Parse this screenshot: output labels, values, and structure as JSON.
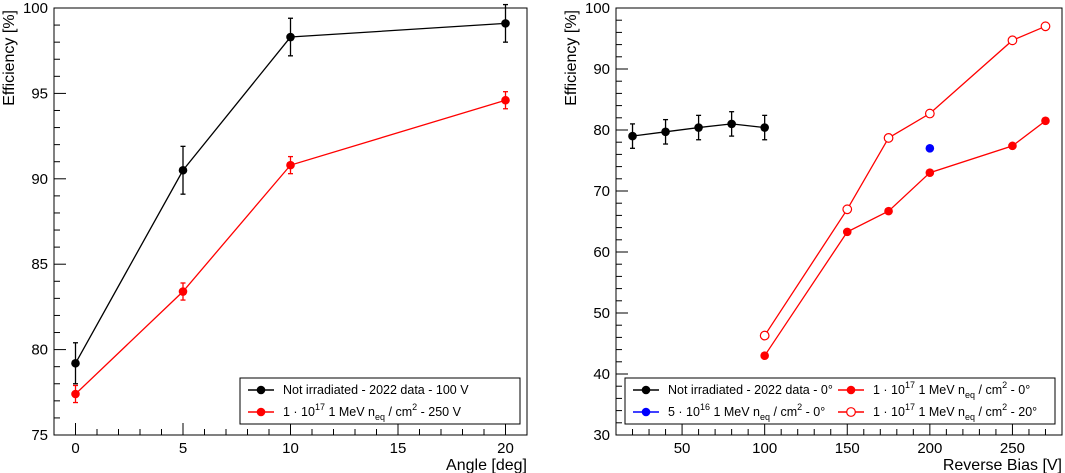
{
  "chart_data": [
    {
      "type": "line",
      "title": "",
      "xlabel": "Angle [deg]",
      "ylabel": "Efficiency [%]",
      "xlim": [
        -1,
        21
      ],
      "ylim": [
        75,
        100
      ],
      "xticks": [
        0,
        5,
        10,
        15,
        20
      ],
      "yticks": [
        75,
        80,
        85,
        90,
        95,
        100
      ],
      "xtick_labels": [
        "0",
        "5",
        "10",
        "15",
        "20"
      ],
      "ytick_labels": [
        "75",
        "80",
        "85",
        "90",
        "95",
        "100"
      ],
      "legend_position": "bottom-right",
      "series": [
        {
          "name": "Not irradiated - 2022 data - 100 V",
          "legend_main": "Not irradiated - 2022 data - 100 V",
          "color": "#000000",
          "marker": "filled-circle",
          "x": [
            0,
            5,
            10,
            20
          ],
          "values": [
            79.2,
            90.5,
            98.3,
            99.1
          ],
          "errors": [
            1.2,
            1.4,
            1.1,
            1.1
          ]
        },
        {
          "name": "1 · 10^17 1 MeV n_eq / cm^2 - 250 V",
          "legend_main": "1  · 10",
          "legend_sup": "17",
          "legend_mid": " 1 MeV n",
          "legend_sub": "eq",
          "legend_end": " / cm",
          "legend_sup2": "2",
          "legend_tail": " - 250 V",
          "color": "#ff0000",
          "marker": "filled-circle",
          "x": [
            0,
            5,
            10,
            20
          ],
          "values": [
            77.4,
            83.4,
            90.8,
            94.6
          ],
          "errors": [
            0.5,
            0.5,
            0.5,
            0.5
          ]
        }
      ]
    },
    {
      "type": "line",
      "title": "",
      "xlabel": "Reverse Bias [V]",
      "ylabel": "Efficiency [%]",
      "xlim": [
        10,
        280
      ],
      "ylim": [
        30,
        100
      ],
      "xticks": [
        50,
        100,
        150,
        200,
        250
      ],
      "yticks": [
        30,
        40,
        50,
        60,
        70,
        80,
        90,
        100
      ],
      "xtick_labels": [
        "50",
        "100",
        "150",
        "200",
        "250"
      ],
      "ytick_labels": [
        "30",
        "40",
        "50",
        "60",
        "70",
        "80",
        "90",
        "100"
      ],
      "legend_position": "bottom",
      "series": [
        {
          "name": "Not irradiated - 2022 data - 0°",
          "legend_main": "Not irradiated - 2022 data - 0°",
          "color": "#000000",
          "marker": "filled-circle",
          "x": [
            20,
            40,
            60,
            80,
            100
          ],
          "values": [
            79.0,
            79.7,
            80.4,
            81.0,
            80.4
          ],
          "errors": [
            2.0,
            2.0,
            2.0,
            2.0,
            2.0
          ]
        },
        {
          "name": "5 · 10^16 1 MeV n_eq / cm^2 - 0°",
          "legend_main": "5  · 10",
          "legend_sup": "16",
          "legend_mid": " 1 MeV n",
          "legend_sub": "eq",
          "legend_end": " / cm",
          "legend_sup2": "2",
          "legend_tail": " - 0°",
          "color": "#0000ff",
          "marker": "filled-circle",
          "x": [
            200
          ],
          "values": [
            77.0
          ],
          "errors": []
        },
        {
          "name": "1 · 10^17 1 MeV n_eq / cm^2 - 0°",
          "legend_main": "1  · 10",
          "legend_sup": "17",
          "legend_mid": " 1 MeV n",
          "legend_sub": "eq",
          "legend_end": " / cm",
          "legend_sup2": "2",
          "legend_tail": " - 0°",
          "color": "#ff0000",
          "marker": "filled-circle",
          "x": [
            100,
            150,
            175,
            200,
            250,
            270
          ],
          "values": [
            43.0,
            63.3,
            66.7,
            73.0,
            77.4,
            81.5
          ],
          "errors": []
        },
        {
          "name": "1 · 10^17 1 MeV n_eq / cm^2 - 20°",
          "legend_main": "1  · 10",
          "legend_sup": "17",
          "legend_mid": " 1 MeV n",
          "legend_sub": "eq",
          "legend_end": " / cm",
          "legend_sup2": "2",
          "legend_tail": " - 20°",
          "color": "#ff0000",
          "marker": "open-circle",
          "x": [
            100,
            150,
            175,
            200,
            250,
            270
          ],
          "values": [
            46.3,
            67.0,
            78.7,
            82.7,
            94.7,
            97.0
          ],
          "errors": []
        }
      ]
    }
  ]
}
